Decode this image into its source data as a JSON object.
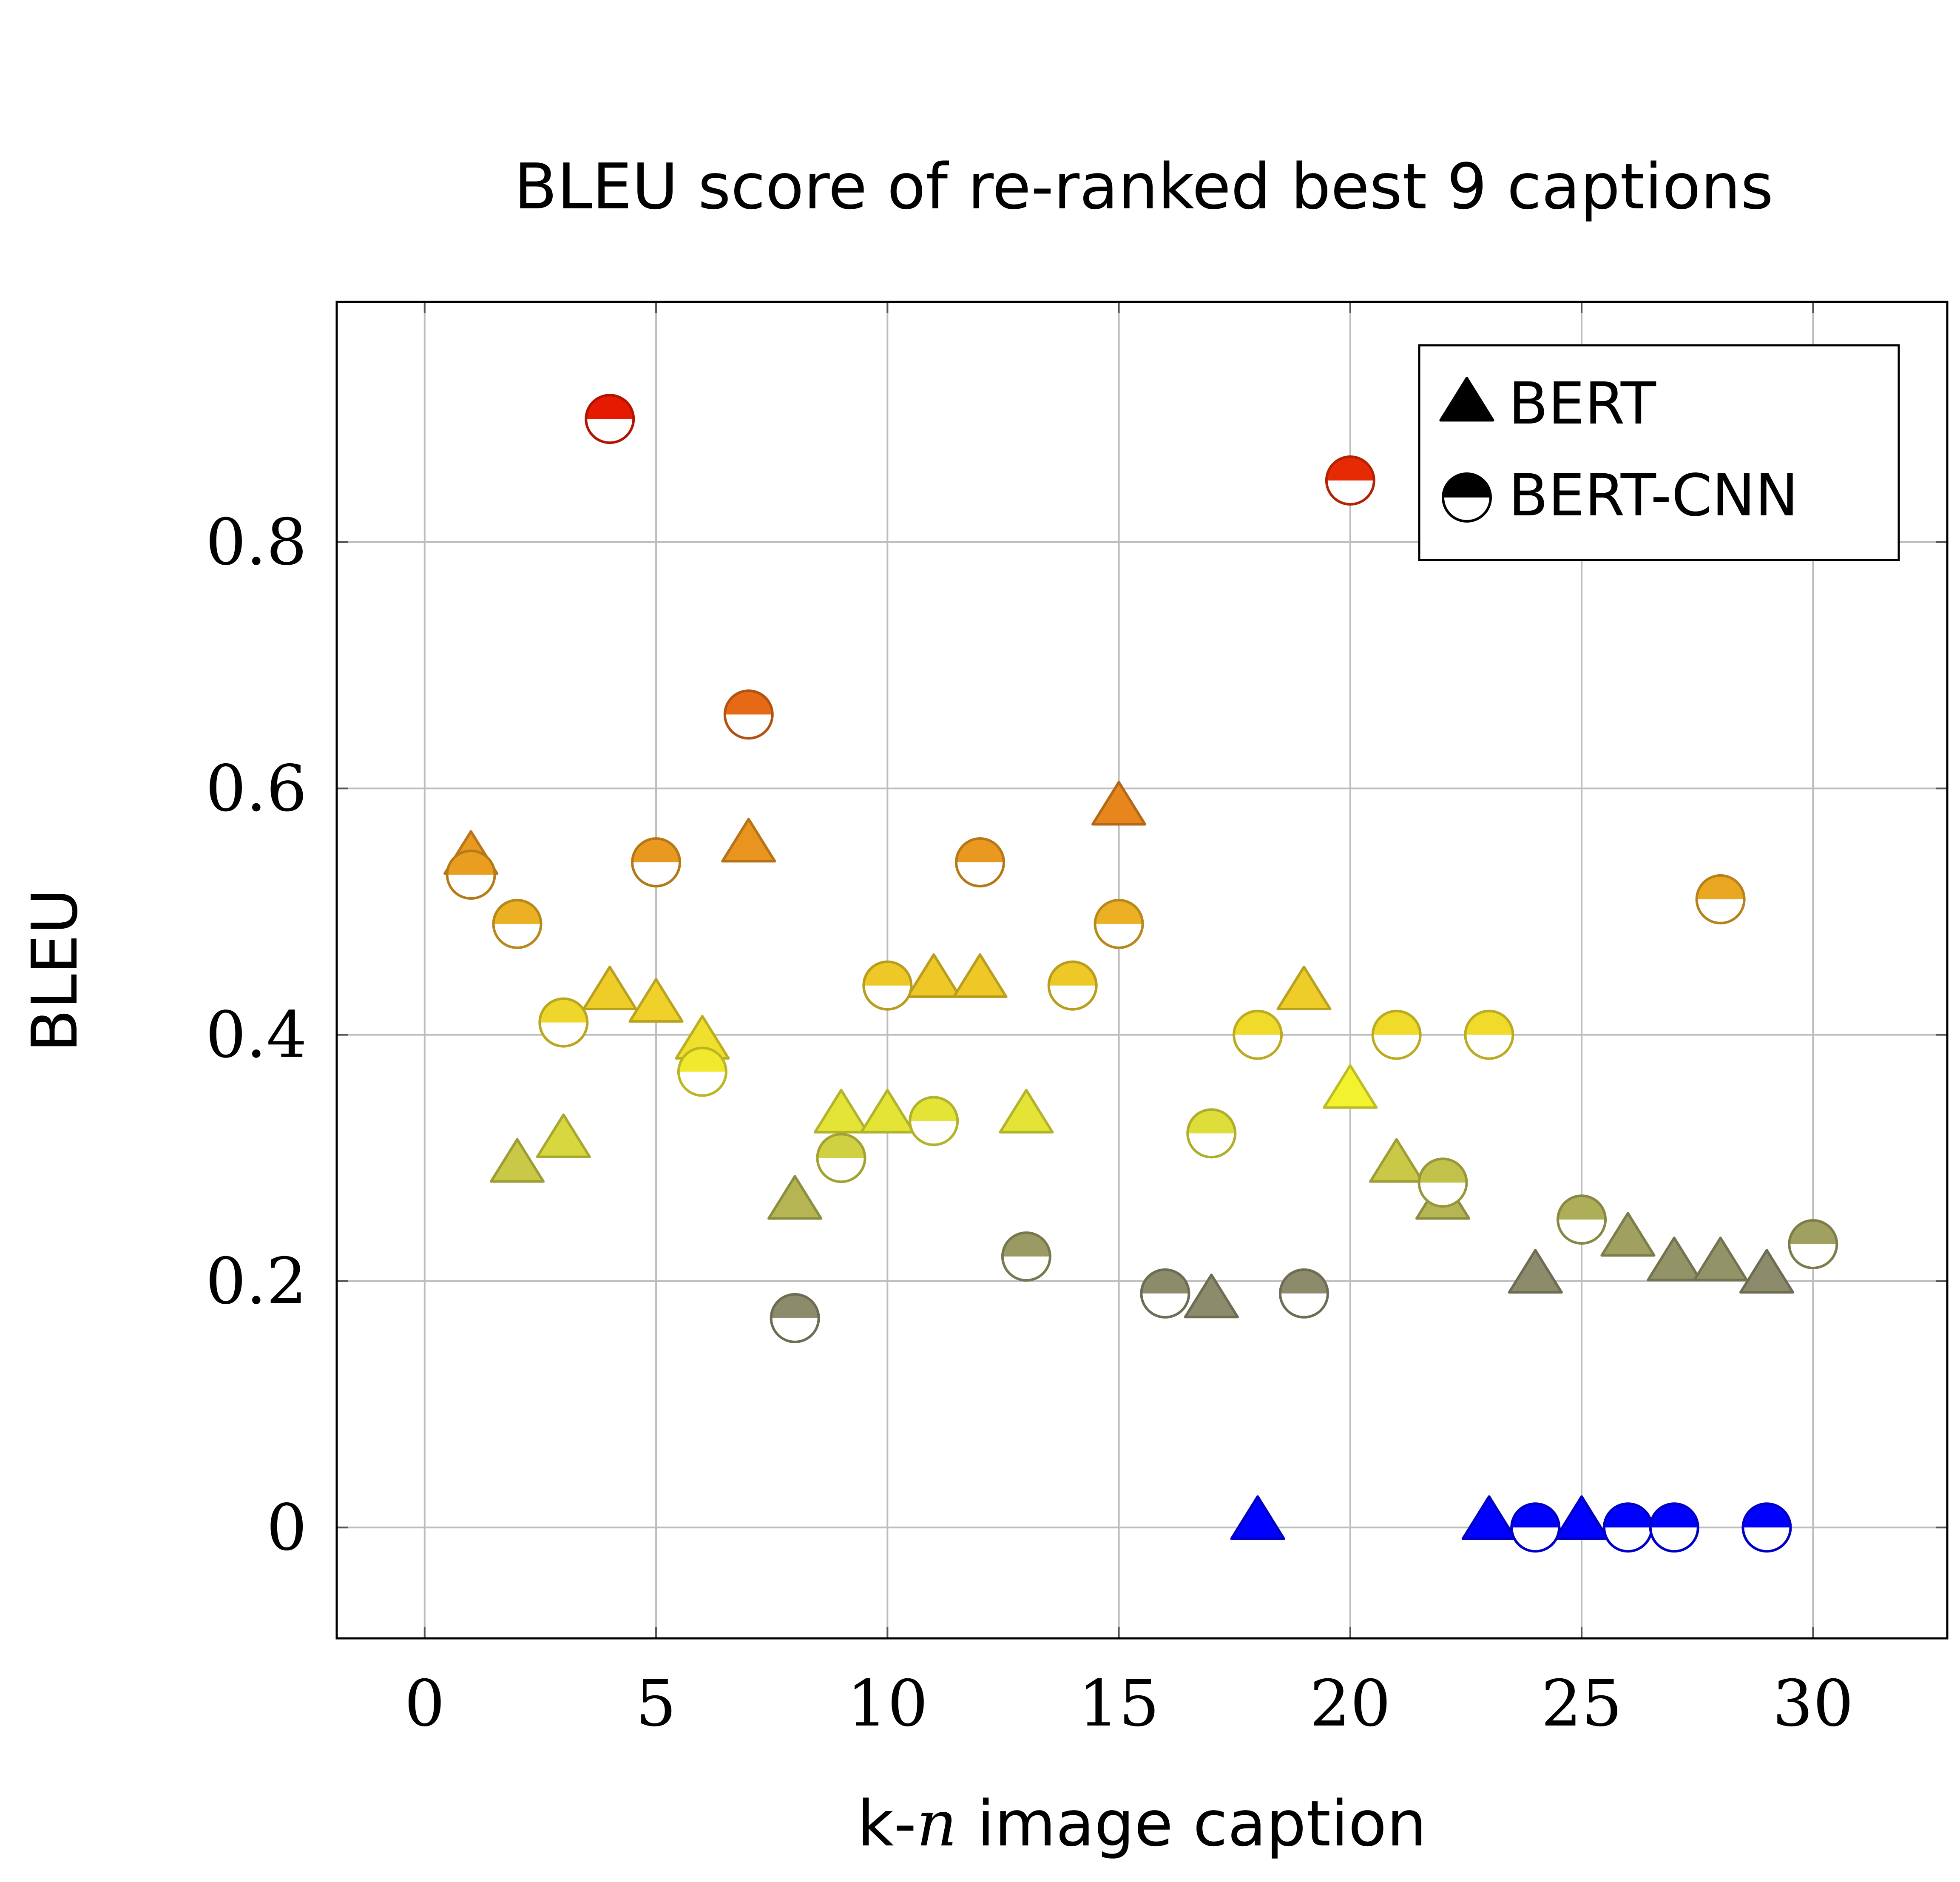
{
  "chart_data": {
    "type": "scatter",
    "title": "BLEU score of re-ranked best 9 captions",
    "xlabel_prefix": "k-",
    "xlabel_var": "n",
    "xlabel_suffix": " image caption",
    "ylabel": "BLEU",
    "xlim": [
      -1.9,
      32.9
    ],
    "ylim": [
      -0.09,
      0.995
    ],
    "xticks": [
      0,
      5,
      10,
      15,
      20,
      25,
      30
    ],
    "yticks": [
      0,
      0.2,
      0.4,
      0.6,
      0.8
    ],
    "ytick_labels": [
      "0",
      "0.2",
      "0.4",
      "0.6",
      "0.8"
    ],
    "grid": true,
    "legend_position": "top-right",
    "colors": {
      "zero": "#0000ff",
      "low": "#8c8c6c",
      "mid": "#f2f22f",
      "orange": "#e67d1a",
      "red": "#e61a00"
    },
    "series": [
      {
        "name": "BERT",
        "marker": "triangle",
        "points": [
          {
            "x": 1,
            "y": 0.54
          },
          {
            "x": 2,
            "y": 0.29
          },
          {
            "x": 3,
            "y": 0.31
          },
          {
            "x": 4,
            "y": 0.43
          },
          {
            "x": 5,
            "y": 0.42
          },
          {
            "x": 6,
            "y": 0.39
          },
          {
            "x": 7,
            "y": 0.55
          },
          {
            "x": 8,
            "y": 0.26
          },
          {
            "x": 9,
            "y": 0.33
          },
          {
            "x": 10,
            "y": 0.33
          },
          {
            "x": 11,
            "y": 0.44
          },
          {
            "x": 12,
            "y": 0.44
          },
          {
            "x": 13,
            "y": 0.33
          },
          {
            "x": 15,
            "y": 0.58
          },
          {
            "x": 17,
            "y": 0.18
          },
          {
            "x": 18,
            "y": 0.0
          },
          {
            "x": 19,
            "y": 0.43
          },
          {
            "x": 20,
            "y": 0.35
          },
          {
            "x": 21,
            "y": 0.29
          },
          {
            "x": 22,
            "y": 0.26
          },
          {
            "x": 23,
            "y": 0.0
          },
          {
            "x": 24,
            "y": 0.2
          },
          {
            "x": 25,
            "y": 0.0
          },
          {
            "x": 26,
            "y": 0.23
          },
          {
            "x": 27,
            "y": 0.21
          },
          {
            "x": 28,
            "y": 0.21
          },
          {
            "x": 29,
            "y": 0.2
          }
        ]
      },
      {
        "name": "BERT-CNN",
        "marker": "half-circle",
        "points": [
          {
            "x": 1,
            "y": 0.53
          },
          {
            "x": 2,
            "y": 0.49
          },
          {
            "x": 3,
            "y": 0.41
          },
          {
            "x": 4,
            "y": 0.9
          },
          {
            "x": 5,
            "y": 0.54
          },
          {
            "x": 6,
            "y": 0.37
          },
          {
            "x": 7,
            "y": 0.66
          },
          {
            "x": 8,
            "y": 0.17
          },
          {
            "x": 9,
            "y": 0.3
          },
          {
            "x": 10,
            "y": 0.44
          },
          {
            "x": 11,
            "y": 0.33
          },
          {
            "x": 12,
            "y": 0.54
          },
          {
            "x": 13,
            "y": 0.22
          },
          {
            "x": 14,
            "y": 0.44
          },
          {
            "x": 15,
            "y": 0.49
          },
          {
            "x": 16,
            "y": 0.19
          },
          {
            "x": 17,
            "y": 0.32
          },
          {
            "x": 18,
            "y": 0.4
          },
          {
            "x": 19,
            "y": 0.19
          },
          {
            "x": 20,
            "y": 0.85
          },
          {
            "x": 21,
            "y": 0.4
          },
          {
            "x": 22,
            "y": 0.28
          },
          {
            "x": 23,
            "y": 0.4
          },
          {
            "x": 24,
            "y": 0.0
          },
          {
            "x": 25,
            "y": 0.25
          },
          {
            "x": 26,
            "y": 0.0
          },
          {
            "x": 27,
            "y": 0.0
          },
          {
            "x": 28,
            "y": 0.51
          },
          {
            "x": 29,
            "y": 0.0
          },
          {
            "x": 30,
            "y": 0.23
          }
        ]
      }
    ]
  }
}
